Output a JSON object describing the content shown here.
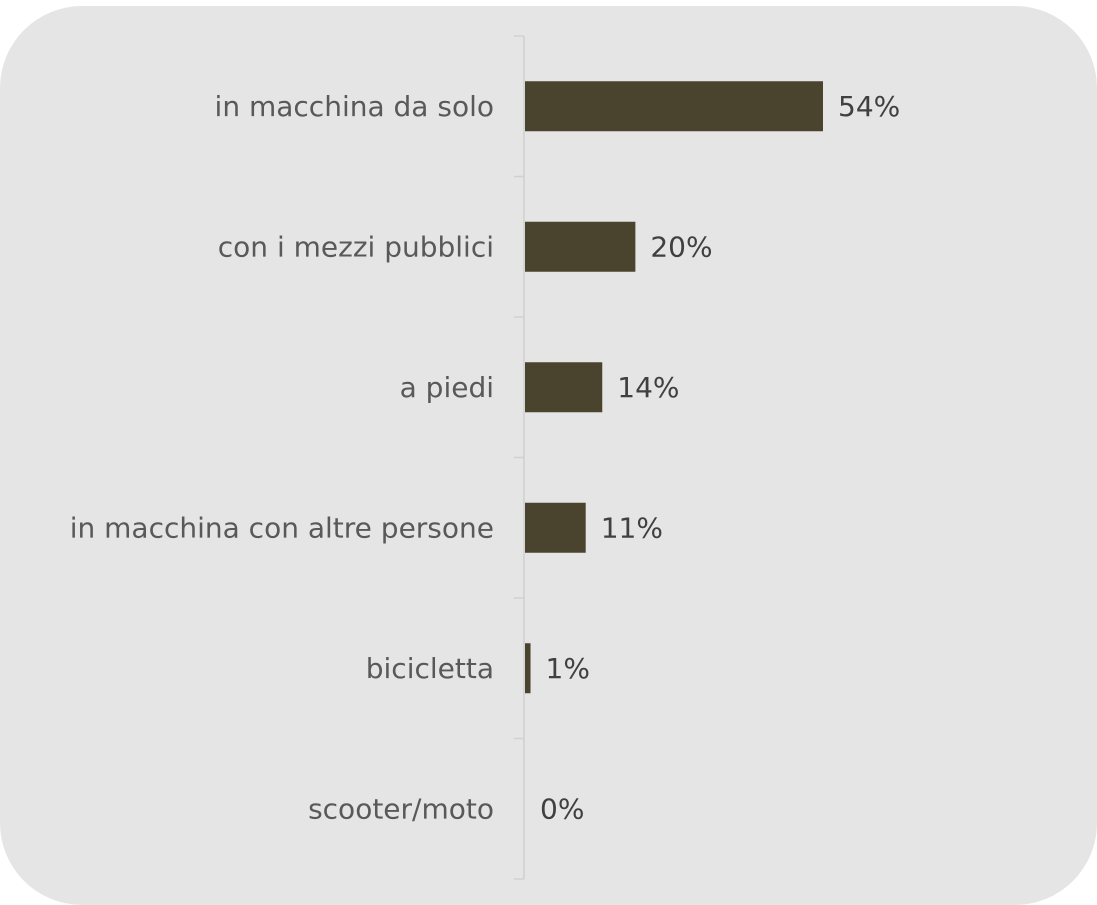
{
  "colors": {
    "background": "#e4e5e4",
    "bar": "#4a432e",
    "axis": "#d0d0d0",
    "category_text": "#595959",
    "value_text": "#404040"
  },
  "chart_data": {
    "type": "bar",
    "orientation": "horizontal",
    "categories": [
      "in macchina da solo",
      "con i mezzi pubblici",
      "a piedi",
      "in macchina con altre persone",
      "bicicletta",
      "scooter/moto"
    ],
    "values": [
      54,
      20,
      14,
      11,
      1,
      0
    ],
    "value_labels": [
      "54%",
      "20%",
      "14%",
      "11%",
      "1%",
      "0%"
    ],
    "unit": "%",
    "xlim": [
      0,
      100
    ],
    "grid": false,
    "legend": "none",
    "title": "",
    "xlabel": "",
    "ylabel": ""
  }
}
